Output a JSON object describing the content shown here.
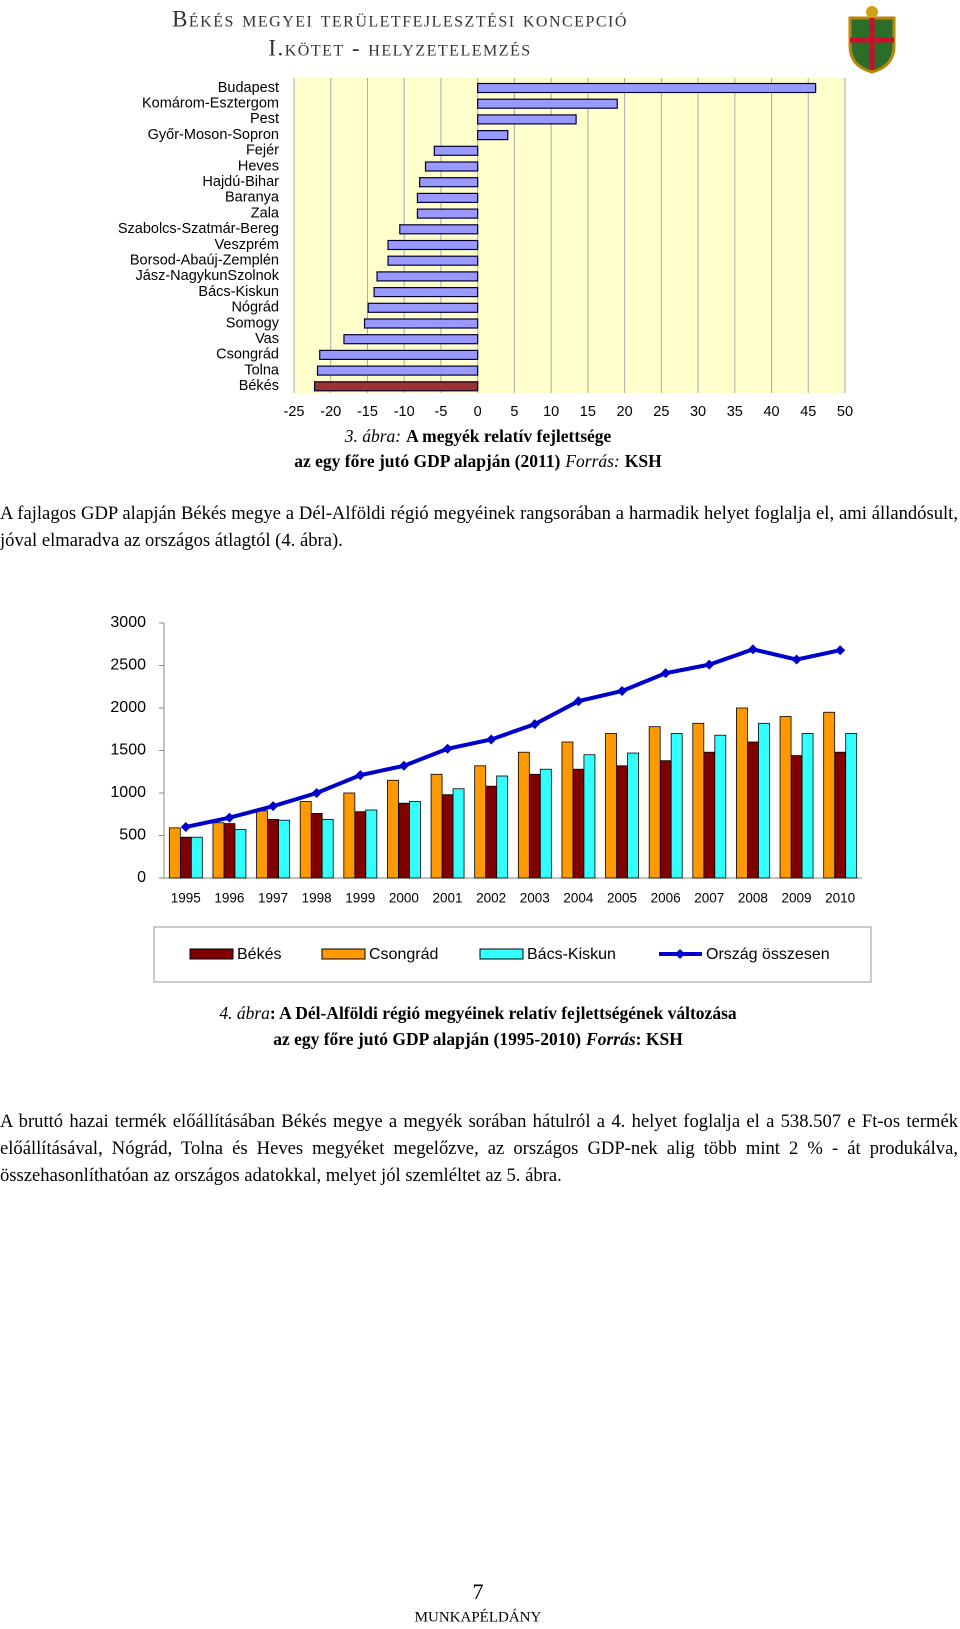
{
  "header": {
    "title": "Békés megyei területfejlesztési koncepció",
    "subtitle": "I.kötet - helyzetelemzés"
  },
  "chart_data": [
    {
      "type": "hbar",
      "categories": [
        "Budapest",
        "Komárom-Esztergom",
        "Pest",
        "Győr-Moson-Sopron",
        "Fejér",
        "Heves",
        "Hajdú-Bihar",
        "Baranya",
        "Zala",
        "Szabolcs-Szatmár-Bereg",
        "Veszprém",
        "Borsod-Abaúj-Zemplén",
        "Jász-NagykunSzolnok",
        "Bács-Kiskun",
        "Nógrád",
        "Somogy",
        "Vas",
        "Csongrád",
        "Tolna",
        "Békés"
      ],
      "values": [
        46,
        19,
        13.4,
        4.1,
        -5.9,
        -7.1,
        -7.9,
        -8.2,
        -8.2,
        -10.6,
        -12.2,
        -12.2,
        -13.7,
        -14.1,
        -14.9,
        -15.4,
        -18.2,
        -21.5,
        -21.8,
        -22.2
      ],
      "colors": [
        "#9999ff",
        "#9999ff",
        "#9999ff",
        "#9999ff",
        "#9999ff",
        "#9999ff",
        "#9999ff",
        "#9999ff",
        "#9999ff",
        "#9999ff",
        "#9999ff",
        "#9999ff",
        "#9999ff",
        "#9999ff",
        "#9999ff",
        "#9999ff",
        "#9999ff",
        "#9999ff",
        "#9999ff",
        "#993333"
      ],
      "xlim": [
        -25,
        50
      ],
      "xticks": [
        -25,
        -20,
        -15,
        -10,
        -5,
        0,
        5,
        10,
        15,
        20,
        25,
        30,
        35,
        40,
        45,
        50
      ],
      "grid": true,
      "caption": [
        "3. ábra:",
        "A megyék relatív fejlettsége",
        "az egy főre jutó GDP alapján (2011)",
        "Forrás:",
        "KSH"
      ]
    },
    {
      "type": "bar",
      "categories": [
        "1995",
        "1996",
        "1997",
        "1998",
        "1999",
        "2000",
        "2001",
        "2002",
        "2003",
        "2004",
        "2005",
        "2006",
        "2007",
        "2008",
        "2009",
        "2010"
      ],
      "series": [
        {
          "name": "Békés",
          "color": "#800000",
          "type": "bar",
          "values": [
            480,
            640,
            690,
            760,
            780,
            880,
            980,
            1080,
            1220,
            1280,
            1320,
            1380,
            1480,
            1600,
            1440,
            1480
          ]
        },
        {
          "name": "Csongrád",
          "color": "#ff9900",
          "type": "bar",
          "values": [
            590,
            650,
            790,
            900,
            1000,
            1150,
            1220,
            1320,
            1480,
            1600,
            1700,
            1780,
            1820,
            2000,
            1900,
            1950
          ]
        },
        {
          "name": "Bács-Kiskun",
          "color": "#33ffff",
          "type": "bar",
          "values": [
            480,
            570,
            680,
            690,
            800,
            900,
            1050,
            1200,
            1280,
            1450,
            1470,
            1700,
            1680,
            1820,
            1700,
            1700
          ]
        },
        {
          "name": "Ország összesen",
          "color": "#0000cc",
          "type": "line",
          "values": [
            600,
            710,
            845,
            1000,
            1210,
            1320,
            1520,
            1630,
            1810,
            2080,
            2200,
            2410,
            2510,
            2690,
            2570,
            2680
          ]
        }
      ],
      "ylim": [
        0,
        3000
      ],
      "yticks": [
        0,
        500,
        1000,
        1500,
        2000,
        2500,
        3000
      ],
      "grid": false,
      "legend": "bottom",
      "caption": [
        "4. ábra",
        ": A Dél-Alföldi régió megyéinek relatív fejlettségének változása",
        "az egy főre jutó GDP alapján (1995-2010)",
        "Forrás",
        ": KSH"
      ]
    }
  ],
  "paragraphs": [
    "A fajlagos GDP alapján Békés megye a Dél-Alföldi régió megyéinek rangsorában a harmadik helyet foglalja el, ami állandósult, jóval elmaradva az országos átlagtól (4. ábra).",
    "A bruttó hazai termék előállításában Békés megye a megyék sorában hátulról a 4. helyet foglalja el a 538.507 e Ft-os termék előállításával, Nógrád, Tolna és Heves megyéket megelőzve, az országos GDP-nek alig több mint 2 % - át produkálva, összehasonlíthatóan az országos adatokkal, melyet jól szemléltet az 5. ábra."
  ],
  "footer": {
    "page": "7",
    "note": "MUNKAPÉLDÁNY"
  }
}
